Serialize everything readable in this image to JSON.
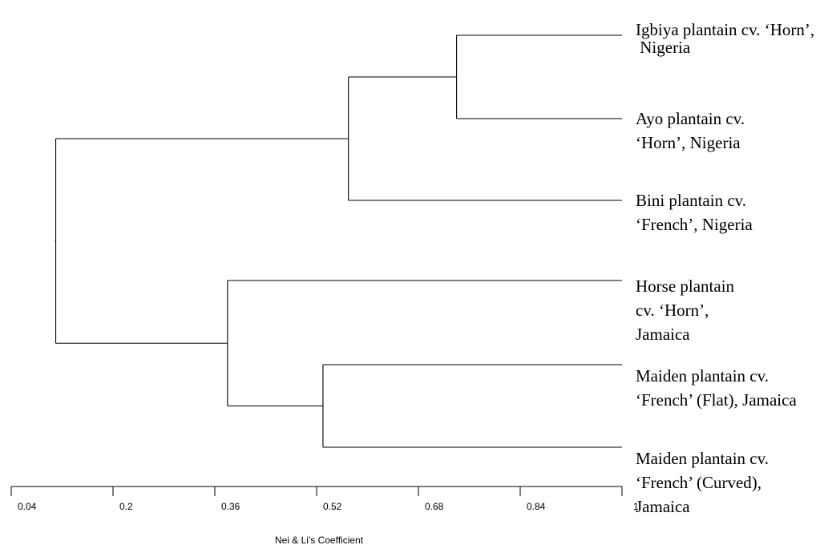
{
  "chart_data": {
    "type": "dendrogram",
    "axis": {
      "title": "Nei & Li's Coefficient",
      "ticks": [
        "0.04",
        "0.2",
        "0.36",
        "0.52",
        "0.68",
        "0.84",
        "1"
      ],
      "range": [
        0.04,
        1.0
      ]
    },
    "leaves": [
      {
        "id": "igbiya",
        "lines": [
          "Igbiya plantain cv. ‘Horn’,",
          "  Nigeria"
        ]
      },
      {
        "id": "ayo",
        "lines": [
          "Ayo plantain cv.",
          "‘Horn’, Nigeria"
        ]
      },
      {
        "id": "bini",
        "lines": [
          "Bini plantain cv.",
          "‘French’, Nigeria"
        ]
      },
      {
        "id": "horse",
        "lines": [
          "Horse plantain",
          "cv. ‘Horn’,",
          "Jamaica"
        ]
      },
      {
        "id": "maiden_flat",
        "lines": [
          "Maiden plantain cv.",
          "‘French’ (Flat), Jamaica"
        ]
      },
      {
        "id": "maiden_curved",
        "lines": [
          "Maiden plantain cv.",
          "‘French’ (Curved),",
          "Jamaica"
        ]
      }
    ],
    "merges": [
      {
        "id": "m1",
        "children": [
          "igbiya",
          "ayo"
        ],
        "height": 0.74
      },
      {
        "id": "m2",
        "children": [
          "m1",
          "bini"
        ],
        "height": 0.57
      },
      {
        "id": "m3",
        "children": [
          "maiden_flat",
          "maiden_curved"
        ],
        "height": 0.53
      },
      {
        "id": "m4",
        "children": [
          "horse",
          "m3"
        ],
        "height": 0.38
      },
      {
        "id": "m5",
        "children": [
          "m2",
          "m4"
        ],
        "height": 0.11
      }
    ]
  }
}
